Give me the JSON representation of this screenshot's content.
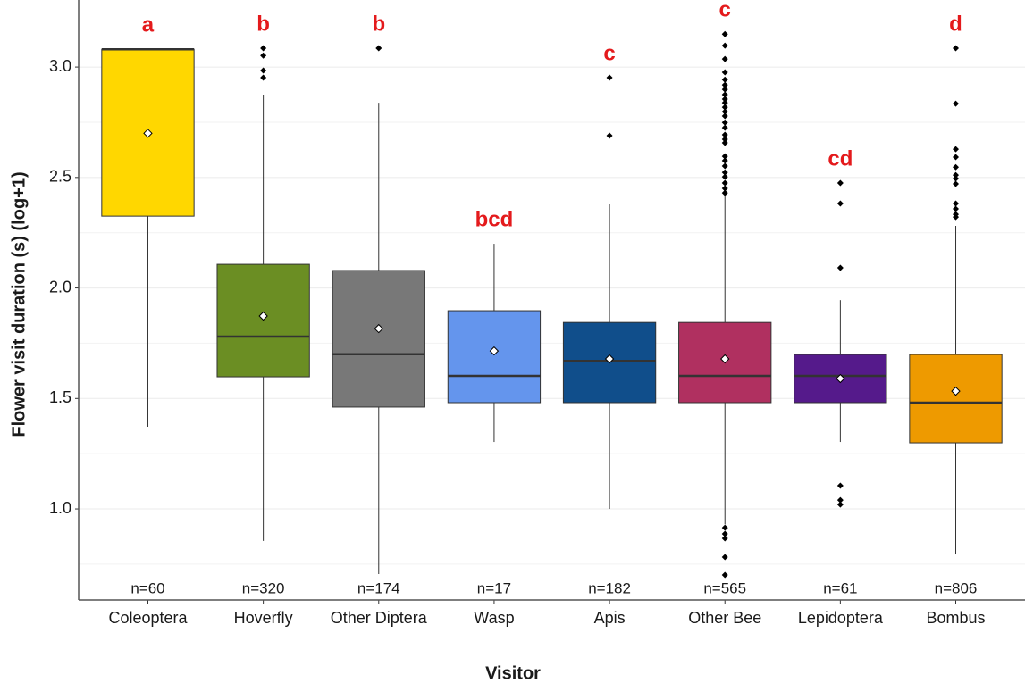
{
  "chart_data": {
    "type": "box",
    "x_label": "Visitor",
    "y_label": "Flower visit duration (s) (log+1)",
    "ylim": [
      0.588,
      3.263
    ],
    "yticks": [
      {
        "value": 1.0,
        "label": "1.0"
      },
      1.5,
      {
        "value": 2.0,
        "label": "2.0"
      },
      2.5,
      {
        "value": 3.0,
        "label": "3.0"
      }
    ],
    "minor_yticks": [
      0.75,
      1.25,
      1.75,
      2.25,
      2.75
    ],
    "grid": true,
    "boxes": [
      {
        "name": "Coleoptera",
        "color": "#FFD700",
        "whisker_low": 1.372,
        "q1": 2.325,
        "median": 3.08,
        "q3": 3.08,
        "whisker_high": 3.08,
        "mean": 2.7,
        "outliers": [],
        "letter": "a",
        "n": "n=60"
      },
      {
        "name": "Hoverfly",
        "color": "#6B8E23",
        "whisker_low": 0.855,
        "q1": 1.598,
        "median": 1.78,
        "q3": 2.107,
        "whisker_high": 2.875,
        "mean": 1.873,
        "outliers": [
          3.085,
          3.052,
          2.984,
          2.952
        ],
        "letter": "b",
        "n": "n=320"
      },
      {
        "name": "Other Diptera",
        "color": "#787878",
        "whisker_low": 0.705,
        "q1": 1.461,
        "median": 1.7,
        "q3": 2.079,
        "whisker_high": 2.838,
        "mean": 1.816,
        "outliers": [
          3.085
        ],
        "letter": "b",
        "n": "n=174"
      },
      {
        "name": "Wasp",
        "color": "#6495ED",
        "whisker_low": 1.303,
        "q1": 1.481,
        "median": 1.602,
        "q3": 1.897,
        "whisker_high": 2.2,
        "mean": 1.715,
        "outliers": [],
        "letter": "bcd",
        "n": "n=17"
      },
      {
        "name": "Apis",
        "color": "#104E8B",
        "whisker_low": 1.0,
        "q1": 1.481,
        "median": 1.67,
        "q3": 1.844,
        "whisker_high": 2.378,
        "mean": 1.679,
        "outliers": [
          2.952,
          2.689
        ],
        "letter": "c",
        "n": "n=182"
      },
      {
        "name": "Other Bee",
        "color": "#B03060",
        "whisker_low": 0.93,
        "q1": 1.481,
        "median": 1.602,
        "q3": 1.844,
        "whisker_high": 2.418,
        "mean": 1.679,
        "outliers": [
          3.149,
          3.097,
          3.036,
          2.976,
          2.943,
          2.919,
          2.899,
          2.875,
          2.855,
          2.838,
          2.818,
          2.798,
          2.778,
          2.749,
          2.725,
          2.693,
          2.673,
          2.657,
          2.596,
          2.576,
          2.552,
          2.523,
          2.503,
          2.475,
          2.451,
          2.43,
          0.915,
          0.887,
          0.867,
          0.782,
          0.701
        ],
        "letter": "c",
        "n": "n=565"
      },
      {
        "name": "Lepidoptera",
        "color": "#551A8B",
        "whisker_low": 1.303,
        "q1": 1.481,
        "median": 1.602,
        "q3": 1.699,
        "whisker_high": 1.945,
        "mean": 1.59,
        "outliers": [
          2.475,
          2.382,
          2.091,
          1.105,
          1.04,
          1.02
        ],
        "letter": "cd",
        "n": "n=61"
      },
      {
        "name": "Bombus",
        "color": "#EE9A00",
        "whisker_low": 0.794,
        "q1": 1.299,
        "median": 1.481,
        "q3": 1.699,
        "whisker_high": 2.281,
        "mean": 1.533,
        "outliers": [
          3.085,
          2.834,
          2.628,
          2.592,
          2.547,
          2.511,
          2.495,
          2.471,
          2.382,
          2.358,
          2.333,
          2.321
        ],
        "letter": "d",
        "n": "n=806"
      }
    ]
  }
}
